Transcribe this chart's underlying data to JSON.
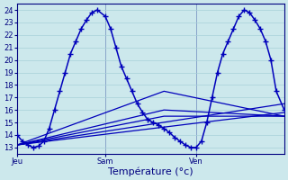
{
  "background_color": "#cce8ec",
  "grid_color": "#a8d0d8",
  "line_color": "#0000bb",
  "marker": "+",
  "markersize": 4,
  "linewidth": 1.1,
  "ylim": [
    12.5,
    24.5
  ],
  "yticks": [
    13,
    14,
    15,
    16,
    17,
    18,
    19,
    20,
    21,
    22,
    23,
    24
  ],
  "xlabel": "Température (°c)",
  "xlabel_fontsize": 8,
  "tick_fontsize": 6,
  "xtick_labels": [
    "Jeu",
    "Sam",
    "Ven"
  ],
  "xtick_positions": [
    0.0,
    0.33,
    0.67
  ],
  "xlim": [
    0.0,
    1.0
  ],
  "vline_color": "#4040aa",
  "main_line_x": [
    0.0,
    0.02,
    0.04,
    0.06,
    0.08,
    0.1,
    0.12,
    0.14,
    0.16,
    0.18,
    0.2,
    0.22,
    0.24,
    0.26,
    0.28,
    0.3,
    0.33,
    0.35,
    0.37,
    0.39,
    0.41,
    0.43,
    0.45,
    0.47,
    0.49,
    0.51,
    0.53,
    0.55,
    0.57,
    0.59,
    0.61,
    0.63,
    0.65,
    0.67,
    0.69,
    0.71,
    0.73,
    0.75,
    0.77,
    0.79,
    0.81,
    0.83,
    0.85,
    0.87,
    0.89,
    0.91,
    0.93,
    0.95,
    0.97,
    1.0
  ],
  "main_line_y": [
    14.0,
    13.5,
    13.2,
    13.0,
    13.1,
    13.5,
    14.5,
    16.0,
    17.5,
    19.0,
    20.5,
    21.5,
    22.5,
    23.2,
    23.8,
    24.0,
    23.5,
    22.5,
    21.0,
    19.5,
    18.5,
    17.5,
    16.5,
    15.8,
    15.2,
    15.0,
    14.8,
    14.5,
    14.2,
    13.8,
    13.5,
    13.2,
    13.0,
    13.0,
    13.5,
    15.0,
    17.0,
    19.0,
    20.5,
    21.5,
    22.5,
    23.5,
    24.0,
    23.8,
    23.2,
    22.5,
    21.5,
    20.0,
    17.5,
    16.0
  ],
  "forecast_lines": [
    {
      "x": [
        0.0,
        1.0
      ],
      "y": [
        13.2,
        15.8
      ]
    },
    {
      "x": [
        0.0,
        1.0
      ],
      "y": [
        13.2,
        16.5
      ]
    },
    {
      "x": [
        0.0,
        0.55,
        1.0
      ],
      "y": [
        13.2,
        17.5,
        15.5
      ]
    },
    {
      "x": [
        0.0,
        0.55,
        1.0
      ],
      "y": [
        13.2,
        16.0,
        15.5
      ]
    },
    {
      "x": [
        0.0,
        0.55,
        1.0
      ],
      "y": [
        13.2,
        15.5,
        15.5
      ]
    }
  ]
}
